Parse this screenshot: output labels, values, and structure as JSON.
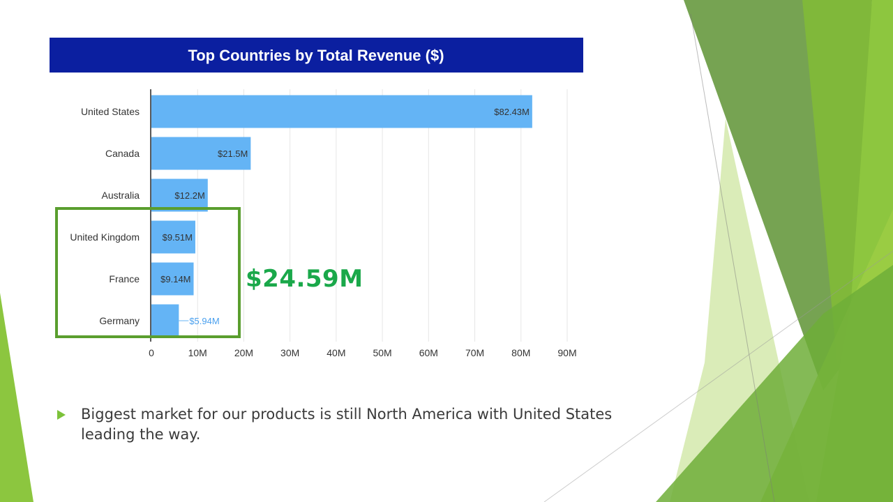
{
  "slide": {
    "callout": "$24.59M",
    "bullet": "Biggest market for our products is still North America with United States leading the way.",
    "colors": {
      "title_bg": "#0b1fa0",
      "bar": "#64b4f5",
      "highlight_box": "#5a9e2e",
      "callout": "#1aa84a",
      "accent_green": "#7cc23a"
    }
  },
  "chart_data": {
    "type": "bar",
    "orientation": "horizontal",
    "title": "Top Countries by Total Revenue ($)",
    "categories": [
      "United States",
      "Canada",
      "Australia",
      "United Kingdom",
      "France",
      "Germany"
    ],
    "values": [
      82.43,
      21.5,
      12.2,
      9.51,
      9.14,
      5.94
    ],
    "data_labels": [
      "$82.43M",
      "$21.5M",
      "$12.2M",
      "$9.51M",
      "$9.14M",
      "$5.94M"
    ],
    "xlim": [
      0,
      90
    ],
    "x_ticks": [
      0,
      10,
      20,
      30,
      40,
      50,
      60,
      70,
      80,
      90
    ],
    "x_tick_labels": [
      "0",
      "10M",
      "20M",
      "30M",
      "40M",
      "50M",
      "60M",
      "70M",
      "80M",
      "90M"
    ],
    "grid": true,
    "highlighted_categories": [
      "United Kingdom",
      "France",
      "Germany"
    ]
  }
}
